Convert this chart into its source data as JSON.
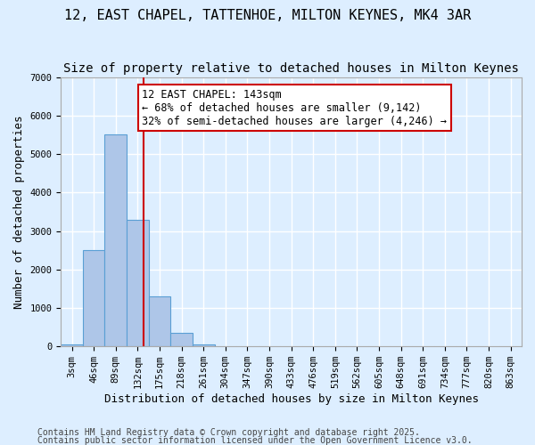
{
  "title": "12, EAST CHAPEL, TATTENHOE, MILTON KEYNES, MK4 3AR",
  "subtitle": "Size of property relative to detached houses in Milton Keynes",
  "xlabel": "Distribution of detached houses by size in Milton Keynes",
  "ylabel": "Number of detached properties",
  "bins": [
    "3sqm",
    "46sqm",
    "89sqm",
    "132sqm",
    "175sqm",
    "218sqm",
    "261sqm",
    "304sqm",
    "347sqm",
    "390sqm",
    "433sqm",
    "476sqm",
    "519sqm",
    "562sqm",
    "605sqm",
    "648sqm",
    "691sqm",
    "734sqm",
    "777sqm",
    "820sqm",
    "863sqm"
  ],
  "values": [
    50,
    2500,
    5500,
    3300,
    1300,
    350,
    50,
    0,
    0,
    0,
    0,
    0,
    0,
    0,
    0,
    0,
    0,
    0,
    0,
    0,
    0
  ],
  "bar_color": "#aec6e8",
  "bar_edge_color": "#5a9fd4",
  "background_color": "#ddeeff",
  "grid_color": "#ffffff",
  "vline_color": "#cc0000",
  "ylim": [
    0,
    7000
  ],
  "yticks": [
    0,
    1000,
    2000,
    3000,
    4000,
    5000,
    6000,
    7000
  ],
  "annotation_text": "12 EAST CHAPEL: 143sqm\n← 68% of detached houses are smaller (9,142)\n32% of semi-detached houses are larger (4,246) →",
  "annotation_box_color": "#ffffff",
  "annotation_box_edge_color": "#cc0000",
  "footnote1": "Contains HM Land Registry data © Crown copyright and database right 2025.",
  "footnote2": "Contains public sector information licensed under the Open Government Licence v3.0.",
  "title_fontsize": 11,
  "subtitle_fontsize": 10,
  "axis_label_fontsize": 9,
  "tick_fontsize": 7.5,
  "annotation_fontsize": 8.5,
  "footnote_fontsize": 7
}
